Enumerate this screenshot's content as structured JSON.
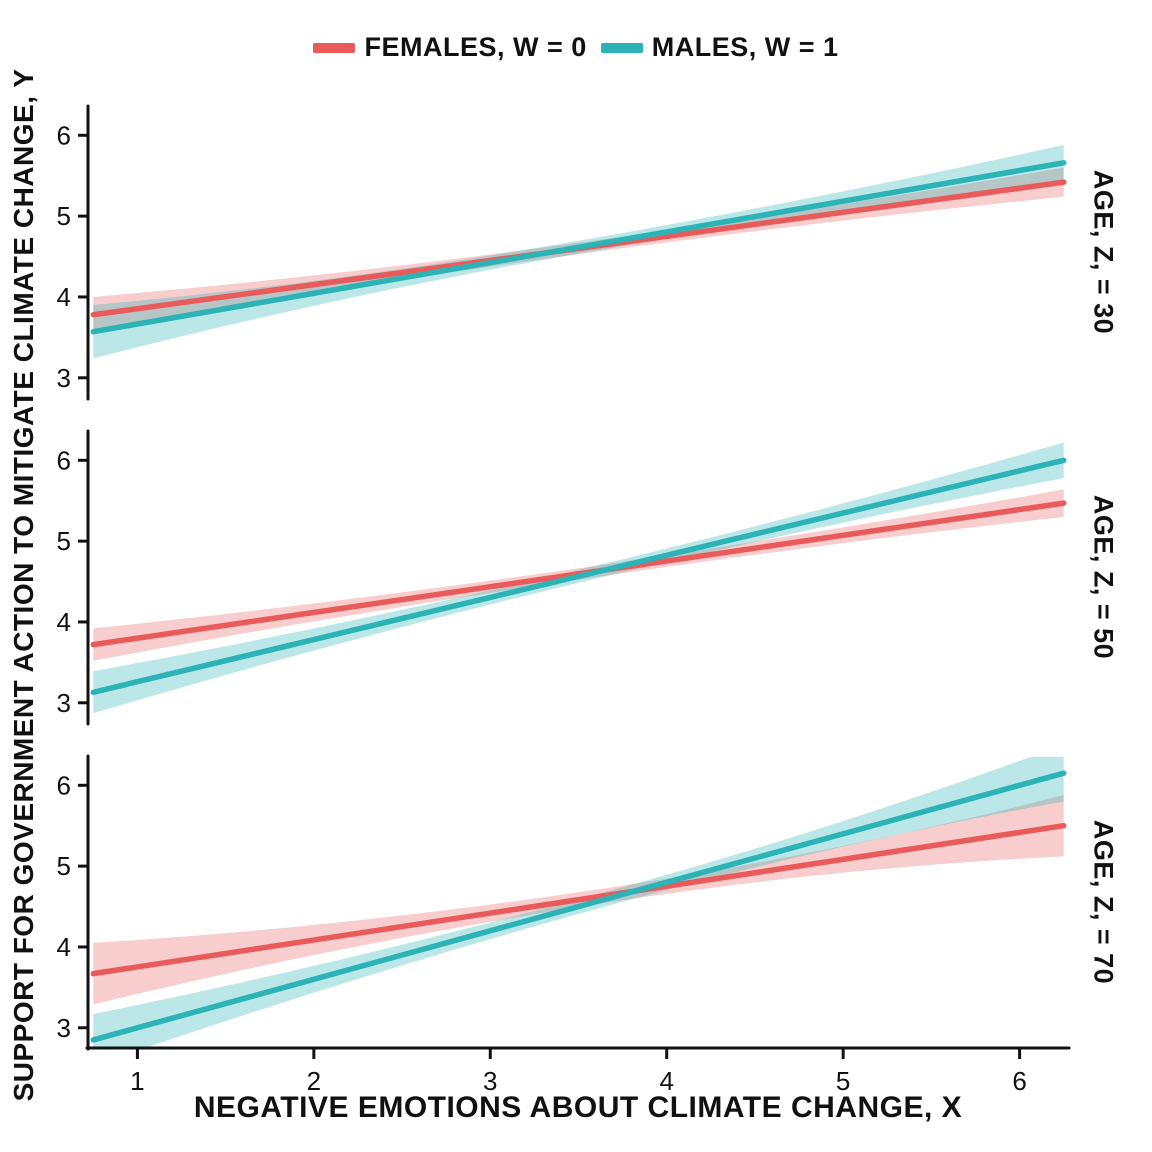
{
  "legend": {
    "items": [
      {
        "label": "FEMALES, W = 0",
        "color": "#e95a5b",
        "fill": "rgba(233,90,91,0.30)"
      },
      {
        "label": "MALES, W = 1",
        "color": "#2bb3b6",
        "fill": "rgba(43,179,182,0.32)"
      }
    ]
  },
  "axes": {
    "x_label": "NEGATIVE EMOTIONS ABOUT CLIMATE CHANGE, X",
    "y_label": "SUPPORT FOR GOVERNMENT ACTION TO MITIGATE CLIMATE CHANGE, Y",
    "x_ticks": [
      1,
      2,
      3,
      4,
      5,
      6
    ],
    "y_ticks": [
      3,
      4,
      5,
      6
    ],
    "x_domain": [
      0.72,
      6.28
    ],
    "y_domain": [
      2.75,
      6.35
    ]
  },
  "chart_data": {
    "type": "line",
    "title": "",
    "xlabel": "NEGATIVE EMOTIONS ABOUT CLIMATE CHANGE, X",
    "ylabel": "SUPPORT FOR GOVERNMENT ACTION TO MITIGATE CLIMATE CHANGE, Y",
    "legend_position": "top",
    "grid": false,
    "x_range": [
      0.75,
      6.25
    ],
    "y_tick_range": [
      3,
      6
    ],
    "facets": [
      {
        "facet_label": "AGE, Z, = 30",
        "ci_center_x": 3.5,
        "series": [
          {
            "name": "FEMALES, W = 0",
            "x": [
              0.75,
              6.25
            ],
            "y": [
              3.78,
              5.42
            ],
            "ci_halfwidth": {
              "left": 0.22,
              "mid": 0.07,
              "right": 0.18
            }
          },
          {
            "name": "MALES, W = 1",
            "x": [
              0.75,
              6.25
            ],
            "y": [
              3.57,
              5.66
            ],
            "ci_halfwidth": {
              "left": 0.33,
              "mid": 0.08,
              "right": 0.22
            }
          }
        ]
      },
      {
        "facet_label": "AGE, Z, = 50",
        "ci_center_x": 3.6,
        "series": [
          {
            "name": "FEMALES, W = 0",
            "x": [
              0.75,
              6.25
            ],
            "y": [
              3.72,
              5.47
            ],
            "ci_halfwidth": {
              "left": 0.2,
              "mid": 0.07,
              "right": 0.17
            }
          },
          {
            "name": "MALES, W = 1",
            "x": [
              0.75,
              6.25
            ],
            "y": [
              3.13,
              6.0
            ],
            "ci_halfwidth": {
              "left": 0.26,
              "mid": 0.08,
              "right": 0.22
            }
          }
        ]
      },
      {
        "facet_label": "AGE, Z, = 70",
        "ci_center_x": 3.7,
        "series": [
          {
            "name": "FEMALES, W = 0",
            "x": [
              0.75,
              6.25
            ],
            "y": [
              3.67,
              5.5
            ],
            "ci_halfwidth": {
              "left": 0.38,
              "mid": 0.09,
              "right": 0.38
            }
          },
          {
            "name": "MALES, W = 1",
            "x": [
              0.75,
              6.25
            ],
            "y": [
              2.85,
              6.15
            ],
            "ci_halfwidth": {
              "left": 0.32,
              "mid": 0.09,
              "right": 0.35
            }
          }
        ]
      }
    ]
  }
}
